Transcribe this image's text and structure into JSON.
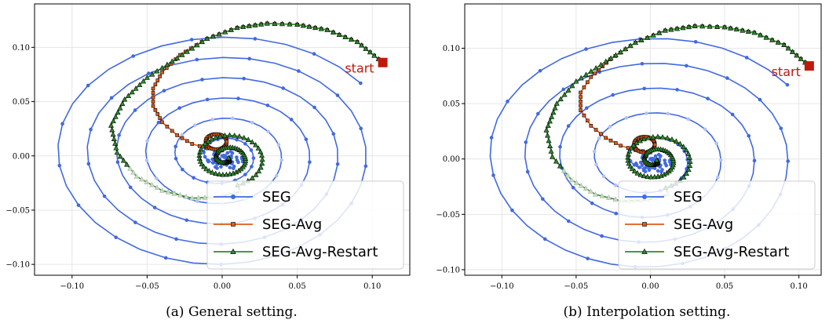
{
  "chart_data": [
    {
      "type": "line",
      "caption": "(a) General setting.",
      "xlim": [
        -0.125,
        0.125
      ],
      "ylim": [
        -0.11,
        0.14
      ],
      "xticks": [
        -0.1,
        -0.05,
        0.0,
        0.05,
        0.1
      ],
      "yticks": [
        -0.1,
        -0.05,
        0.0,
        0.05,
        0.1
      ],
      "xtick_labels": [
        "−0.10",
        "−0.05",
        "0.00",
        "0.05",
        "0.10"
      ],
      "ytick_labels": [
        "−0.10",
        "−0.05",
        "0.00",
        "0.05",
        "0.10"
      ],
      "grid": true,
      "legend_position": "lower-right",
      "annotation": {
        "text": "start",
        "x": 0.107,
        "y": 0.086
      },
      "start_point": [
        0.107,
        0.086
      ],
      "series": [
        {
          "name": "SEG",
          "color": "#4169e1",
          "marker": "circle",
          "spiral": {
            "amp_a": 0.0305,
            "amp_b": 0.0285,
            "phase_a": 2.85,
            "phase_b": 1.19,
            "decay": 0.0305,
            "turns": 6,
            "pts_per_turn": 34,
            "fade_start": 0.55,
            "fade_end": 0.72
          }
        },
        {
          "name": "SEG-Avg",
          "color": "#e05a1a",
          "marker": "square",
          "path": [
            [
              0.107,
              0.086
            ],
            [
              0.09,
              0.105
            ],
            [
              0.07,
              0.116
            ],
            [
              0.05,
              0.121
            ],
            [
              0.03,
              0.122
            ],
            [
              0.01,
              0.118
            ],
            [
              -0.01,
              0.108
            ],
            [
              -0.028,
              0.093
            ],
            [
              -0.04,
              0.077
            ],
            [
              -0.046,
              0.062
            ],
            [
              -0.046,
              0.046
            ],
            [
              -0.04,
              0.031
            ],
            [
              -0.03,
              0.019
            ],
            [
              -0.02,
              0.011
            ],
            [
              -0.01,
              0.007
            ],
            [
              0.0,
              0.005
            ]
          ],
          "loop": {
            "cx": -0.004,
            "cy": 0.013,
            "r": 0.007,
            "points": 36
          }
        },
        {
          "name": "SEG-Avg-Restart",
          "color": "#2e8b2e",
          "marker": "triangle",
          "path": [
            [
              0.107,
              0.086
            ],
            [
              0.09,
              0.105
            ],
            [
              0.07,
              0.116
            ],
            [
              0.05,
              0.121
            ],
            [
              0.03,
              0.122
            ],
            [
              0.01,
              0.118
            ],
            [
              -0.01,
              0.108
            ],
            [
              -0.03,
              0.09
            ],
            [
              -0.05,
              0.072
            ],
            [
              -0.065,
              0.052
            ],
            [
              -0.074,
              0.028
            ],
            [
              -0.07,
              0.003
            ],
            [
              -0.057,
              -0.019
            ],
            [
              -0.04,
              -0.032
            ],
            [
              -0.02,
              -0.039
            ],
            [
              -0.003,
              -0.038
            ],
            [
              0.012,
              -0.033
            ]
          ],
          "spiral_end": {
            "cx": 0.003,
            "cy": -0.002,
            "r0": 0.026,
            "turns": 2.2,
            "points": 90
          },
          "fade_start": 12,
          "fade_end": 16
        }
      ]
    },
    {
      "type": "line",
      "caption": "(b) Interpolation setting.",
      "xlim": [
        -0.125,
        0.115
      ],
      "ylim": [
        -0.105,
        0.14
      ],
      "xticks": [
        -0.1,
        -0.05,
        0.0,
        0.05,
        0.1
      ],
      "yticks": [
        -0.1,
        -0.05,
        0.0,
        0.05,
        0.1
      ],
      "xtick_labels": [
        "−0.10",
        "−0.05",
        "0.00",
        "0.05",
        "0.10"
      ],
      "ytick_labels": [
        "−0.10",
        "−0.05",
        "0.00",
        "0.05",
        "0.10"
      ],
      "grid": true,
      "legend_position": "lower-right",
      "annotation": {
        "text": "start",
        "x": 0.107,
        "y": 0.084
      },
      "start_point": [
        0.107,
        0.084
      ],
      "series": [
        {
          "name": "SEG",
          "color": "#4169e1",
          "marker": "circle",
          "spiral": {
            "amp_a": 0.0315,
            "amp_b": 0.029,
            "phase_a": 2.85,
            "phase_b": 1.19,
            "decay": 0.031,
            "turns": 5,
            "pts_per_turn": 38,
            "fade_start": 0.55,
            "fade_end": 0.72
          }
        },
        {
          "name": "SEG-Avg",
          "color": "#e05a1a",
          "marker": "square",
          "path": [
            [
              0.107,
              0.084
            ],
            [
              0.09,
              0.103
            ],
            [
              0.07,
              0.114
            ],
            [
              0.05,
              0.119
            ],
            [
              0.03,
              0.12
            ],
            [
              0.01,
              0.116
            ],
            [
              -0.01,
              0.105
            ],
            [
              -0.027,
              0.09
            ],
            [
              -0.04,
              0.074
            ],
            [
              -0.047,
              0.06
            ],
            [
              -0.047,
              0.044
            ],
            [
              -0.04,
              0.03
            ],
            [
              -0.03,
              0.019
            ],
            [
              -0.02,
              0.012
            ],
            [
              -0.01,
              0.008
            ],
            [
              0.0,
              0.006
            ]
          ],
          "loop": {
            "cx": -0.004,
            "cy": 0.013,
            "r": 0.007,
            "points": 36
          }
        },
        {
          "name": "SEG-Avg-Restart",
          "color": "#2e8b2e",
          "marker": "triangle",
          "path": [
            [
              0.107,
              0.084
            ],
            [
              0.09,
              0.103
            ],
            [
              0.07,
              0.114
            ],
            [
              0.05,
              0.119
            ],
            [
              0.03,
              0.12
            ],
            [
              0.01,
              0.116
            ],
            [
              -0.01,
              0.105
            ],
            [
              -0.03,
              0.088
            ],
            [
              -0.05,
              0.07
            ],
            [
              -0.063,
              0.05
            ],
            [
              -0.07,
              0.026
            ],
            [
              -0.066,
              0.002
            ],
            [
              -0.053,
              -0.019
            ],
            [
              -0.037,
              -0.032
            ],
            [
              -0.019,
              -0.038
            ],
            [
              -0.002,
              -0.037
            ],
            [
              0.012,
              -0.032
            ]
          ],
          "spiral_end": {
            "cx": 0.003,
            "cy": -0.001,
            "r0": 0.026,
            "turns": 2.2,
            "points": 90
          },
          "fade_start": 12,
          "fade_end": 16
        }
      ]
    }
  ]
}
